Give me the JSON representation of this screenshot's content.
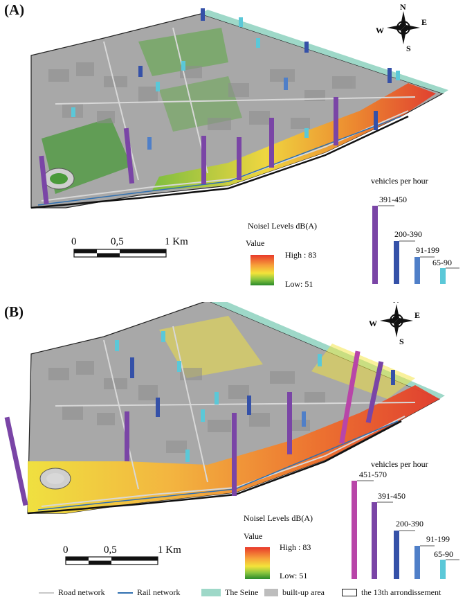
{
  "panels": [
    {
      "label": "(A)",
      "compass": {
        "n": "N",
        "s": "S",
        "e": "E",
        "w": "W"
      },
      "scale": {
        "ticks": [
          "0",
          "0,5",
          "1 Km"
        ]
      },
      "noise_legend": {
        "title": "Noisel Levels dB(A)",
        "value_label": "Value",
        "high": "High : 83",
        "low": "Low:   51"
      },
      "traffic_legend": {
        "title": "vehicles per hour",
        "classes": [
          {
            "label": "391-450",
            "color": "#7a45a6",
            "level": 1.0
          },
          {
            "label": "200-390",
            "color": "#3551a8",
            "level": 0.55
          },
          {
            "label": "91-199",
            "color": "#4f7fc8",
            "level": 0.35
          },
          {
            "label": "65-90",
            "color": "#5bc8d8",
            "level": 0.2
          }
        ]
      }
    },
    {
      "label": "(B)",
      "compass": {
        "n": "N",
        "s": "S",
        "e": "E",
        "w": "W"
      },
      "scale": {
        "ticks": [
          "0",
          "0,5",
          "1 Km"
        ]
      },
      "noise_legend": {
        "title": "Noisel Levels dB(A)",
        "value_label": "Value",
        "high": "High : 83",
        "low": "Low:   51"
      },
      "traffic_legend": {
        "title": "vehicles per hour",
        "classes": [
          {
            "label": "451-570",
            "color": "#b845a8",
            "level": 1.0
          },
          {
            "label": "391-450",
            "color": "#7a45a6",
            "level": 0.8
          },
          {
            "label": "200-390",
            "color": "#3551a8",
            "level": 0.5
          },
          {
            "label": "91-199",
            "color": "#4f7fc8",
            "level": 0.36
          },
          {
            "label": "65-90",
            "color": "#5bc8d8",
            "level": 0.2
          }
        ]
      }
    }
  ],
  "bottom_legend": {
    "road": "Road network",
    "rail": "Rail network",
    "seine": "The Seine",
    "builtup": "built-up area",
    "arrondissement": "the 13th arrondissement"
  },
  "colors": {
    "seine": "#9ed8c8",
    "builtup": "#bdbdbd",
    "road": "#c8c8c8",
    "rail": "#2f6fb0",
    "noise_high": "#e8392a",
    "noise_mid": "#f3e33a",
    "noise_low": "#2a8a2a"
  }
}
